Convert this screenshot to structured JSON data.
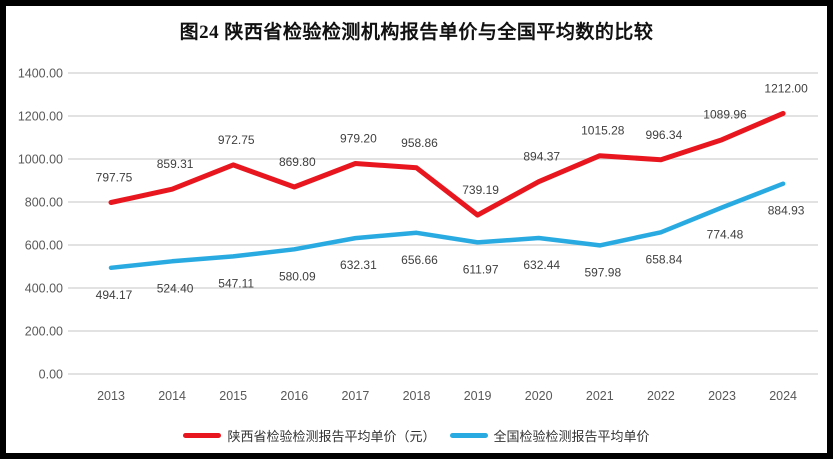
{
  "chart_data": {
    "type": "line",
    "title": "图24 陕西省检验检测机构报告单价与全国平均数的比较",
    "categories": [
      "2013",
      "2014",
      "2015",
      "2016",
      "2017",
      "2018",
      "2019",
      "2020",
      "2021",
      "2022",
      "2023",
      "2024"
    ],
    "series": [
      {
        "name": "陕西省检验检测报告平均单价（元）",
        "color": "#e8171f",
        "stroke_width": 5,
        "label_position": "above",
        "values": [
          797.75,
          859.31,
          972.75,
          869.8,
          979.2,
          958.86,
          739.19,
          894.37,
          1015.28,
          996.34,
          1089.96,
          1212.0
        ]
      },
      {
        "name": "全国检验检测报告平均单价",
        "color": "#29abe2",
        "stroke_width": 4.5,
        "label_position": "below",
        "values": [
          494.17,
          524.4,
          547.11,
          580.09,
          632.31,
          656.66,
          611.97,
          632.44,
          597.98,
          658.84,
          774.48,
          884.93
        ]
      }
    ],
    "ylim": [
      0,
      1400
    ],
    "y_tick_step": 200,
    "y_tick_labels": [
      "0.00",
      "200.00",
      "400.00",
      "600.00",
      "800.00",
      "1000.00",
      "1200.00",
      "1400.00"
    ],
    "value_label_decimals": 2,
    "grid": "horizontal",
    "legend_position": "bottom"
  },
  "colors": {
    "grid": "#d9d9d9",
    "axis_text": "#595959",
    "value_label": "#404040",
    "border": "#000000",
    "background": "#ffffff"
  }
}
